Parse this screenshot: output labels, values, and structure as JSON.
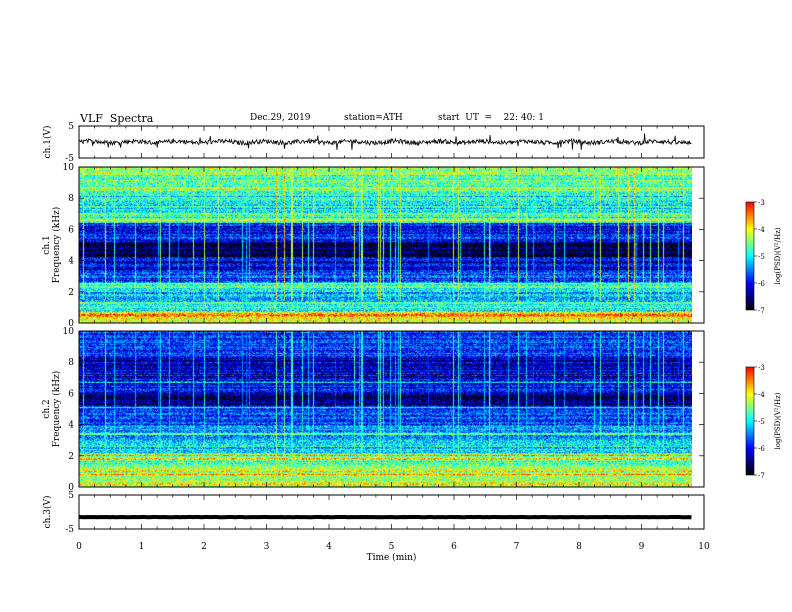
{
  "header": {
    "title": "VLF  Spectra",
    "date": "Dec.29, 2019",
    "station": "station=ATH",
    "start_ut": "start  UT  =    22: 40: 1"
  },
  "colors": {
    "spectrogram_scale": [
      "#000000",
      "#00007f",
      "#0000ff",
      "#007fff",
      "#00ffff",
      "#7fff7f",
      "#ffff00",
      "#ff7f00",
      "#ff0000",
      "#ffffff"
    ]
  },
  "chart_data": [
    {
      "type": "line",
      "panel": "ch1-waveform",
      "ylabel": "ch.1(V)",
      "yticks": [
        "5",
        "-5"
      ],
      "ylim": [
        -5,
        5
      ],
      "x_range_min": [
        0,
        9.8
      ],
      "series": [
        {
          "mean": 0,
          "noise_amplitude": 0.7,
          "spike_amplitude": 2
        }
      ]
    },
    {
      "type": "heatmap",
      "panel": "ch1-spectrogram",
      "ylabel_channel": "ch.1",
      "ylabel": "Frequency  (kHz)",
      "yticks": [
        "0",
        "2",
        "4",
        "6",
        "8",
        "10"
      ],
      "ylim": [
        0,
        10
      ],
      "x_range_min": [
        0,
        9.8
      ],
      "bands_khz": [
        {
          "from": 0,
          "to": 0.4,
          "level": 0.7
        },
        {
          "from": 0.4,
          "to": 0.8,
          "level": 0.75
        },
        {
          "from": 0.8,
          "to": 1.4,
          "level": 0.52
        },
        {
          "from": 1.4,
          "to": 2.0,
          "level": 0.42
        },
        {
          "from": 2.0,
          "to": 2.6,
          "level": 0.5
        },
        {
          "from": 2.6,
          "to": 3.4,
          "level": 0.3
        },
        {
          "from": 3.4,
          "to": 4.2,
          "level": 0.2
        },
        {
          "from": 4.2,
          "to": 5.2,
          "level": 0.06
        },
        {
          "from": 5.2,
          "to": 6.4,
          "level": 0.26
        },
        {
          "from": 6.4,
          "to": 7.0,
          "level": 0.55
        },
        {
          "from": 7.0,
          "to": 8.4,
          "level": 0.5
        },
        {
          "from": 8.4,
          "to": 10,
          "level": 0.62
        }
      ],
      "lines_khz": [
        {
          "f": 0.5,
          "level": 0.9
        },
        {
          "f": 1.0,
          "level": 0.6
        },
        {
          "f": 2.3,
          "level": 0.6
        },
        {
          "f": 2.55,
          "level": 0.65
        },
        {
          "f": 6.6,
          "level": 0.7
        },
        {
          "f": 7.0,
          "level": 0.6
        }
      ],
      "colorbar": {
        "label": "log(PSD)(V²/Hz)",
        "ticks": [
          "-3",
          "-4",
          "-5",
          "-6",
          "-7"
        ],
        "range": [
          -7,
          -3
        ]
      }
    },
    {
      "type": "heatmap",
      "panel": "ch2-spectrogram",
      "ylabel_channel": "ch.2",
      "ylabel": "Frequency  (kHz)",
      "yticks": [
        "0",
        "2",
        "4",
        "6",
        "8",
        "10"
      ],
      "ylim": [
        0,
        10
      ],
      "x_range_min": [
        0,
        9.8
      ],
      "bands_khz": [
        {
          "from": 0,
          "to": 0.6,
          "level": 0.7
        },
        {
          "from": 0.6,
          "to": 1.2,
          "level": 0.7
        },
        {
          "from": 1.2,
          "to": 2.0,
          "level": 0.58
        },
        {
          "from": 2.0,
          "to": 3.0,
          "level": 0.48
        },
        {
          "from": 3.0,
          "to": 4.0,
          "level": 0.4
        },
        {
          "from": 4.0,
          "to": 5.2,
          "level": 0.28
        },
        {
          "from": 5.2,
          "to": 6.0,
          "level": 0.12
        },
        {
          "from": 6.0,
          "to": 7.0,
          "level": 0.24
        },
        {
          "from": 7.0,
          "to": 8.4,
          "level": 0.2
        },
        {
          "from": 8.4,
          "to": 10,
          "level": 0.3
        }
      ],
      "lines_khz": [
        {
          "f": 0.8,
          "level": 0.85
        },
        {
          "f": 1.8,
          "level": 0.8
        },
        {
          "f": 2.1,
          "level": 0.75
        },
        {
          "f": 3.4,
          "level": 0.6
        },
        {
          "f": 5.1,
          "level": 0.55
        },
        {
          "f": 6.7,
          "level": 0.5
        }
      ],
      "colorbar": {
        "label": "log(PSD)(V²/Hz)",
        "ticks": [
          "-3",
          "-4",
          "-5",
          "-6",
          "-7"
        ],
        "range": [
          -7,
          -3
        ]
      }
    },
    {
      "type": "line",
      "panel": "ch3-waveform",
      "ylabel": "ch.3(V)",
      "yticks": [
        "5",
        "-5"
      ],
      "ylim": [
        -5,
        5
      ],
      "x_range_min": [
        0,
        9.8
      ],
      "series": [
        {
          "mean": -1.5,
          "noise_amplitude": 0.05
        }
      ],
      "xlabel": "Time  (min)",
      "xticks": [
        "0",
        "1",
        "2",
        "3",
        "4",
        "5",
        "6",
        "7",
        "8",
        "9",
        "10"
      ],
      "xlim": [
        0,
        10
      ]
    }
  ]
}
